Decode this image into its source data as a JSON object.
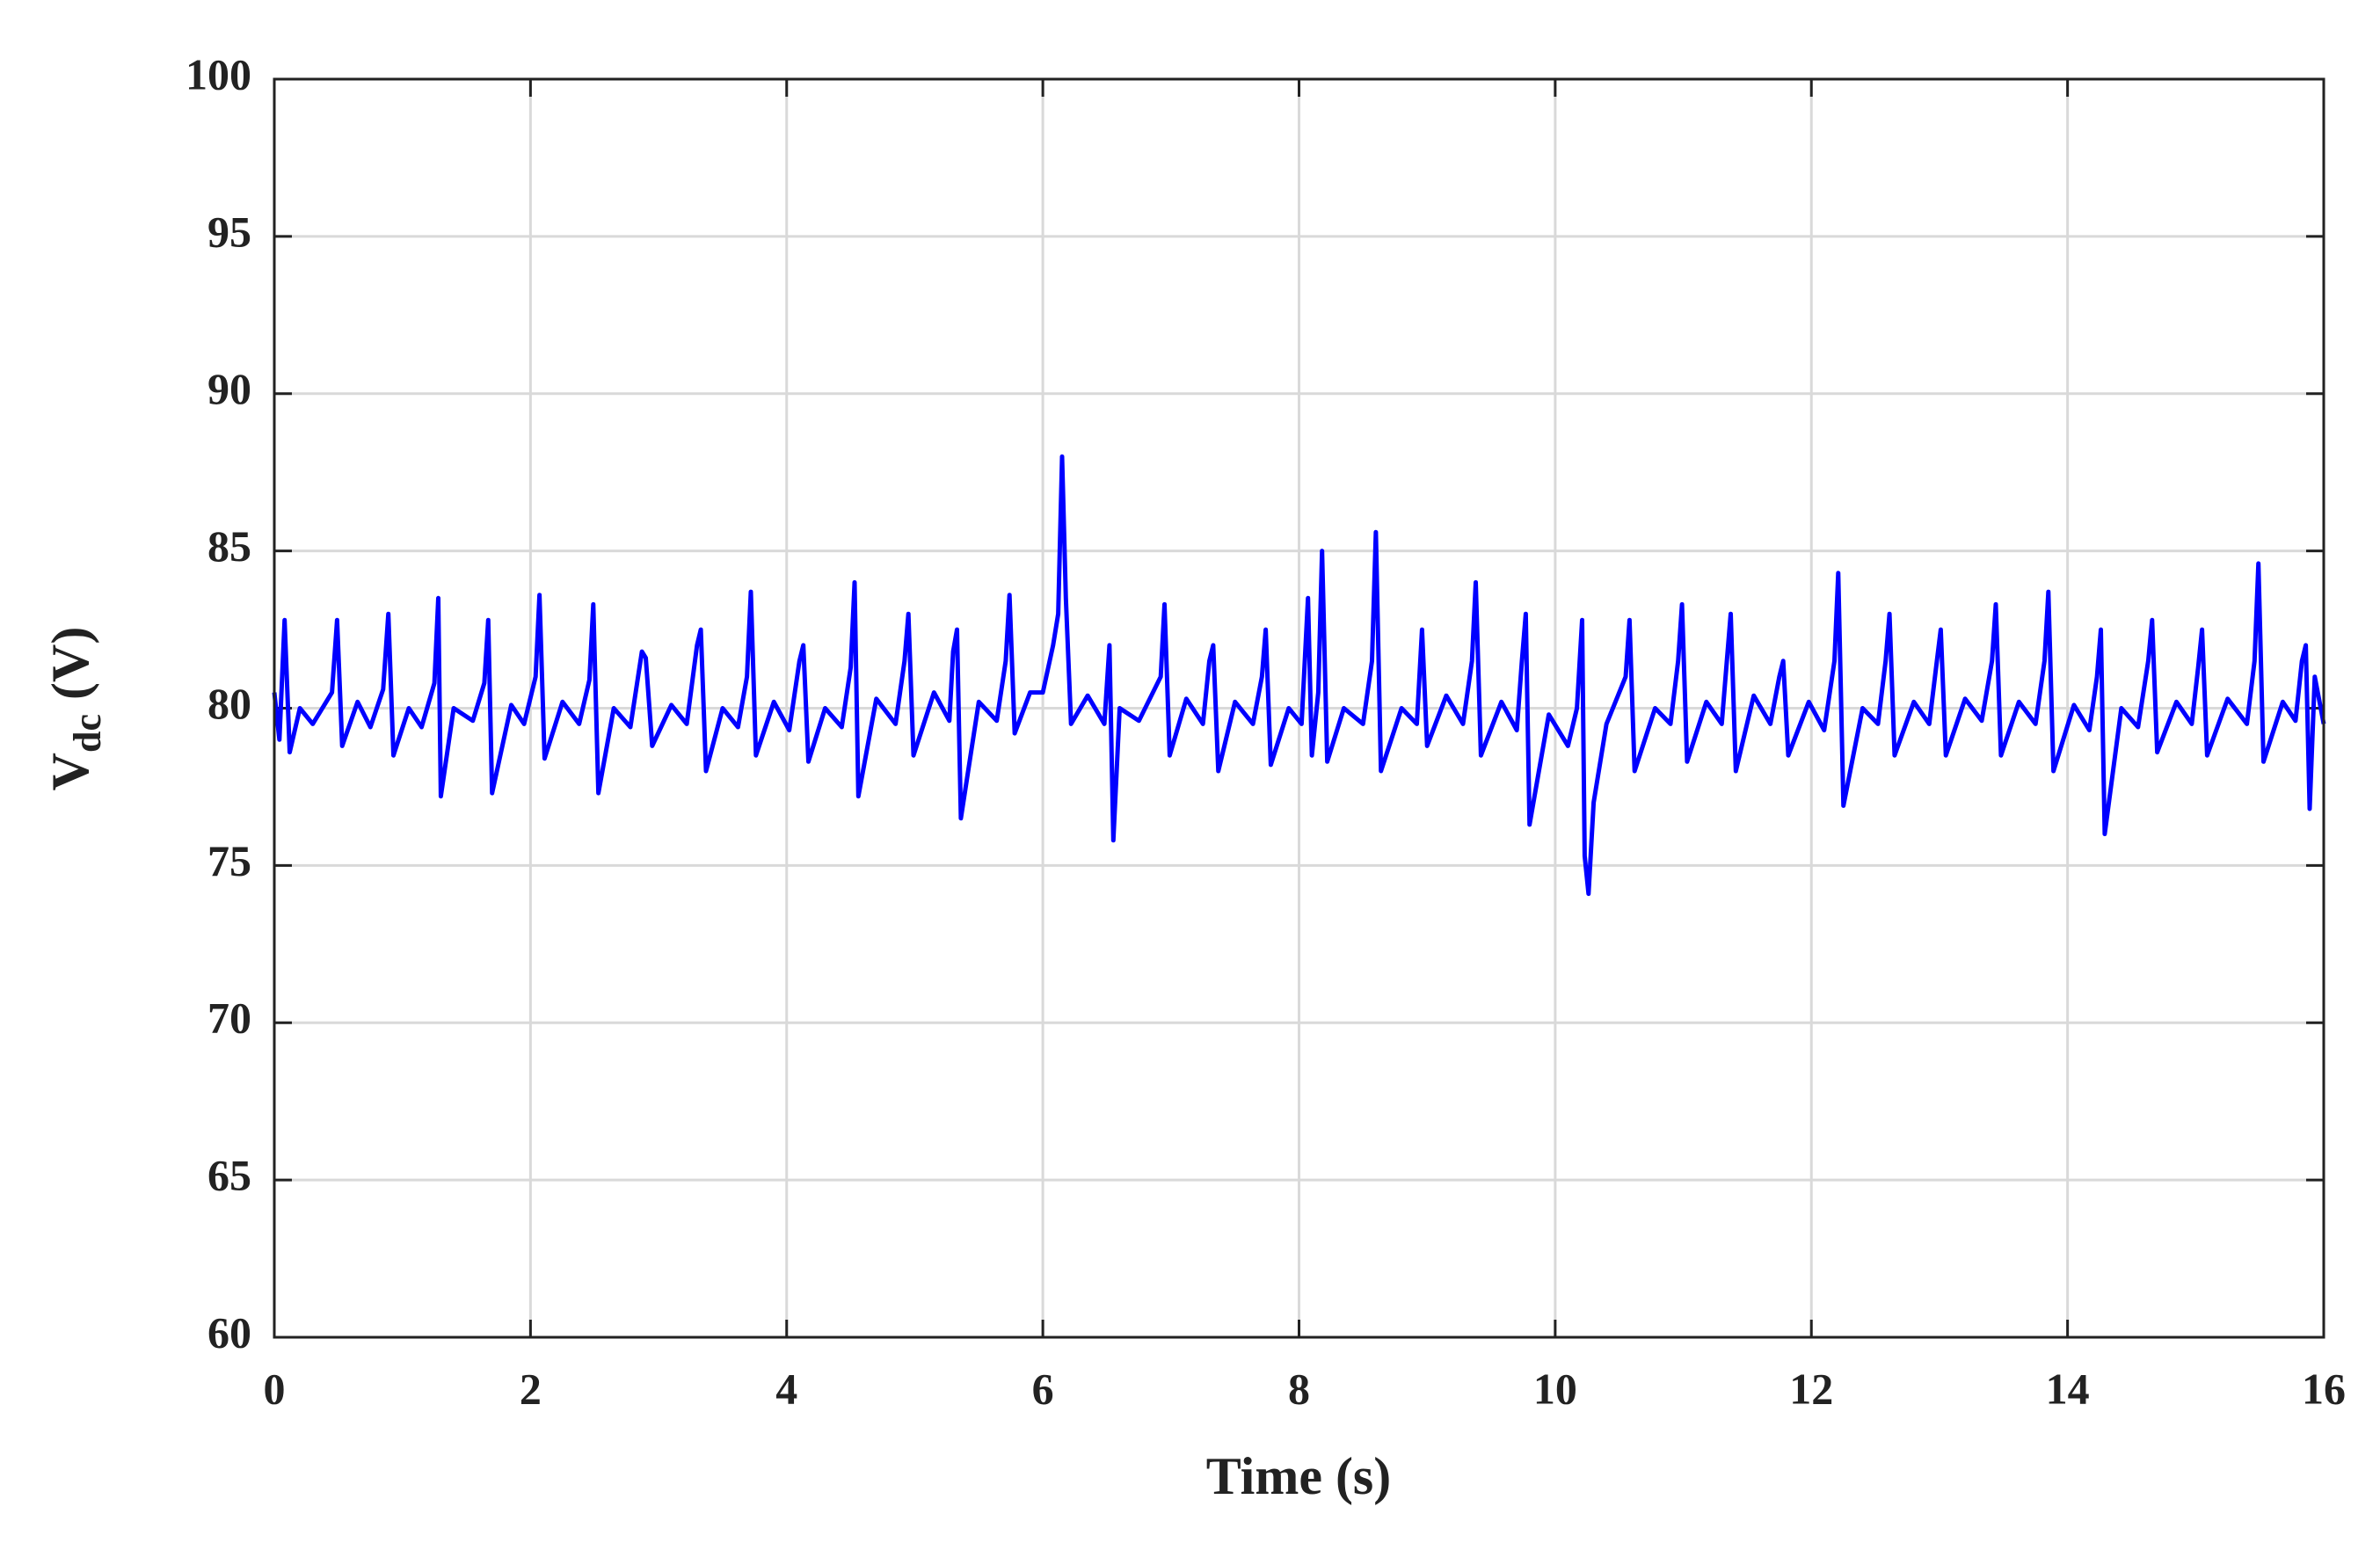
{
  "chart_data": {
    "type": "line",
    "xlabel": "Time (s)",
    "ylabel": {
      "text": "V",
      "subscript": "dc",
      "unit": "(V)"
    },
    "xlim": [
      0,
      16
    ],
    "xticks": [
      0,
      2,
      4,
      6,
      8,
      10,
      12,
      14,
      16
    ],
    "ylim": [
      60,
      100
    ],
    "yticks": [
      60,
      65,
      70,
      75,
      80,
      85,
      90,
      95,
      100
    ],
    "grid": true,
    "color": "#0000ff",
    "x": [
      0,
      0.04,
      0.08,
      0.12,
      0.2,
      0.3,
      0.45,
      0.49,
      0.53,
      0.65,
      0.75,
      0.85,
      0.89,
      0.93,
      1.05,
      1.15,
      1.25,
      1.28,
      1.3,
      1.4,
      1.55,
      1.64,
      1.67,
      1.7,
      1.85,
      1.95,
      2.04,
      2.07,
      2.11,
      2.25,
      2.38,
      2.46,
      2.49,
      2.53,
      2.65,
      2.78,
      2.87,
      2.9,
      2.95,
      3.1,
      3.22,
      3.3,
      3.33,
      3.37,
      3.5,
      3.62,
      3.69,
      3.72,
      3.76,
      3.9,
      4.02,
      4.1,
      4.13,
      4.17,
      4.3,
      4.43,
      4.5,
      4.53,
      4.56,
      4.7,
      4.85,
      4.92,
      4.95,
      4.99,
      5.15,
      5.27,
      5.3,
      5.33,
      5.36,
      5.5,
      5.64,
      5.71,
      5.74,
      5.78,
      5.9,
      6.0,
      6.08,
      6.12,
      6.15,
      6.18,
      6.22,
      6.35,
      6.48,
      6.52,
      6.55,
      6.6,
      6.75,
      6.92,
      6.95,
      6.99,
      7.12,
      7.25,
      7.3,
      7.33,
      7.37,
      7.5,
      7.64,
      7.71,
      7.74,
      7.78,
      7.92,
      8.02,
      8.07,
      8.1,
      8.15,
      8.18,
      8.22,
      8.35,
      8.5,
      8.57,
      8.6,
      8.64,
      8.8,
      8.92,
      8.96,
      9.0,
      9.15,
      9.28,
      9.35,
      9.38,
      9.42,
      9.58,
      9.7,
      9.74,
      9.77,
      9.8,
      9.95,
      10.1,
      10.17,
      10.21,
      10.23,
      10.26,
      10.3,
      10.4,
      10.55,
      10.58,
      10.62,
      10.78,
      10.9,
      10.96,
      10.99,
      11.03,
      11.18,
      11.3,
      11.34,
      11.37,
      11.41,
      11.55,
      11.68,
      11.75,
      11.78,
      11.82,
      11.98,
      12.1,
      12.18,
      12.21,
      12.25,
      12.4,
      12.52,
      12.58,
      12.61,
      12.65,
      12.8,
      12.92,
      12.98,
      13.01,
      13.05,
      13.2,
      13.33,
      13.41,
      13.44,
      13.48,
      13.62,
      13.75,
      13.82,
      13.85,
      13.89,
      14.05,
      14.17,
      14.23,
      14.26,
      14.29,
      14.42,
      14.55,
      14.63,
      14.66,
      14.7,
      14.85,
      14.97,
      15.02,
      15.05,
      15.09,
      15.25,
      15.4,
      15.46,
      15.49,
      15.53,
      15.68,
      15.78,
      15.83,
      15.86,
      15.89,
      15.93,
      16
    ],
    "values": [
      80.5,
      79,
      82.8,
      78.6,
      80,
      79.5,
      80.5,
      82.8,
      78.8,
      80.2,
      79.4,
      80.6,
      83,
      78.5,
      80,
      79.4,
      80.8,
      83.5,
      77.2,
      80,
      79.6,
      80.8,
      82.8,
      77.3,
      80.1,
      79.5,
      81,
      83.6,
      78.4,
      80.2,
      79.5,
      80.9,
      83.3,
      77.3,
      80,
      79.4,
      81.8,
      81.6,
      78.8,
      80.1,
      79.5,
      82,
      82.5,
      78,
      80,
      79.4,
      81,
      83.7,
      78.5,
      80.2,
      79.3,
      81.5,
      82,
      78.3,
      80,
      79.4,
      81.3,
      84,
      77.2,
      80.3,
      79.5,
      81.5,
      83,
      78.5,
      80.5,
      79.6,
      81.8,
      82.5,
      76.5,
      80.2,
      79.6,
      81.5,
      83.6,
      79.2,
      80.5,
      80.5,
      82,
      83,
      88,
      83.5,
      79.5,
      80.4,
      79.5,
      82,
      75.8,
      80,
      79.6,
      81,
      83.3,
      78.5,
      80.3,
      79.5,
      81.5,
      82,
      78,
      80.2,
      79.5,
      81,
      82.5,
      78.2,
      80,
      79.5,
      83.5,
      78.5,
      80.5,
      85,
      78.3,
      80,
      79.5,
      81.5,
      85.6,
      78,
      80,
      79.5,
      82.5,
      78.8,
      80.4,
      79.5,
      81.5,
      84,
      78.5,
      80.2,
      79.3,
      81.5,
      83,
      76.3,
      79.8,
      78.8,
      80,
      82.8,
      75.3,
      74.1,
      77,
      79.5,
      81,
      82.8,
      78,
      80,
      79.5,
      81.5,
      83.3,
      78.3,
      80.2,
      79.5,
      81.5,
      83,
      78,
      80.4,
      79.5,
      81,
      81.5,
      78.5,
      80.2,
      79.3,
      81.5,
      84.3,
      76.9,
      80,
      79.5,
      81.5,
      83,
      78.5,
      80.2,
      79.5,
      81.5,
      82.5,
      78.5,
      80.3,
      79.6,
      81.5,
      83.3,
      78.5,
      80.2,
      79.5,
      81.5,
      83.7,
      78,
      80.1,
      79.3,
      81,
      82.5,
      76,
      80,
      79.4,
      81.5,
      82.8,
      78.6,
      80.2,
      79.5,
      81.3,
      82.5,
      78.5,
      80.3,
      79.5,
      81.5,
      84.6,
      78.3,
      80.2,
      79.6,
      81.5,
      82,
      76.8,
      81,
      79.5
    ]
  }
}
